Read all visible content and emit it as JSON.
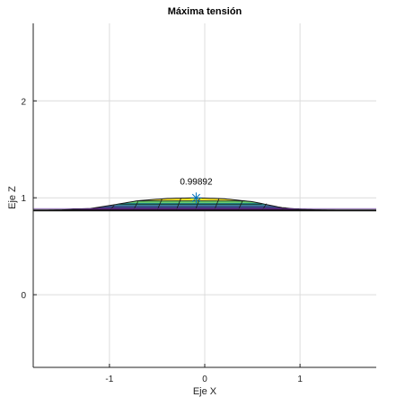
{
  "chart_data": {
    "type": "surface",
    "title": "Máxima tensión",
    "xlabel": "Eje X",
    "ylabel": "Eje Z",
    "xlim": [
      -1.8,
      1.8
    ],
    "ylim": [
      -0.75,
      2.8
    ],
    "xticks": [
      -1,
      0,
      1
    ],
    "xtick_labels": [
      "-1",
      "0",
      "1"
    ],
    "yticks": [
      0,
      1,
      2
    ],
    "ytick_labels": [
      "0",
      "1",
      "2"
    ],
    "grid": true,
    "legend": "none",
    "baseline_z": 0.87,
    "profile": {
      "x": [
        -1.8,
        -1.5,
        -1.2,
        -1.0,
        -0.7,
        -0.4,
        -0.1,
        0.2,
        0.5,
        0.8,
        1.0,
        1.3,
        1.8
      ],
      "z": [
        0.87,
        0.875,
        0.89,
        0.92,
        0.97,
        0.992,
        0.999,
        0.99,
        0.96,
        0.9,
        0.88,
        0.873,
        0.87
      ]
    },
    "max_point": {
      "x": -0.09,
      "z": 0.99892,
      "label": "0.99892"
    },
    "colors": {
      "axis": "#222222",
      "grid": "#dcdcdc",
      "marker": "#0072bd",
      "colormap": [
        "#440154",
        "#3b528b",
        "#21918c",
        "#5ec962",
        "#fde725"
      ]
    }
  }
}
